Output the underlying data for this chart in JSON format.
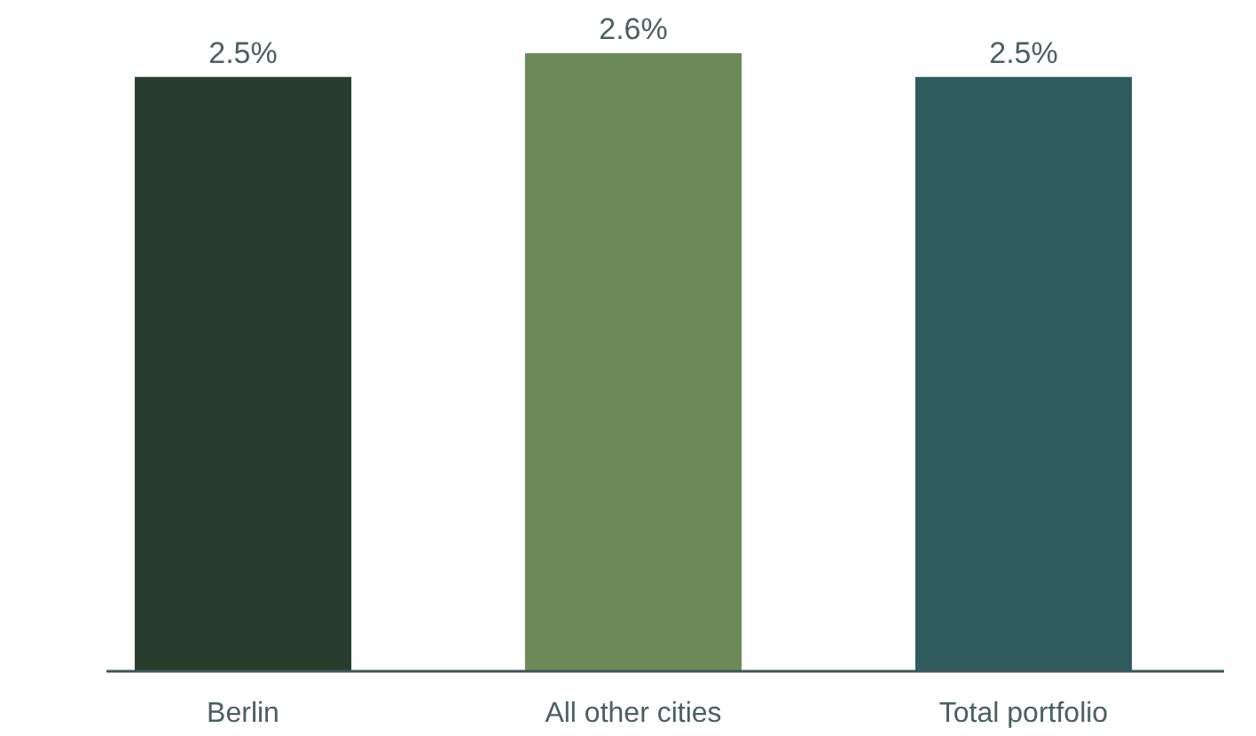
{
  "chart_data": {
    "type": "bar",
    "categories": [
      "Berlin",
      "All other cities",
      "Total portfolio"
    ],
    "values": [
      2.5,
      2.6,
      2.5
    ],
    "colors": [
      "#283d2c",
      "#6b8a58",
      "#2e5b5b"
    ],
    "value_labels": [
      "2.5%",
      "2.6%",
      "2.5%"
    ]
  }
}
